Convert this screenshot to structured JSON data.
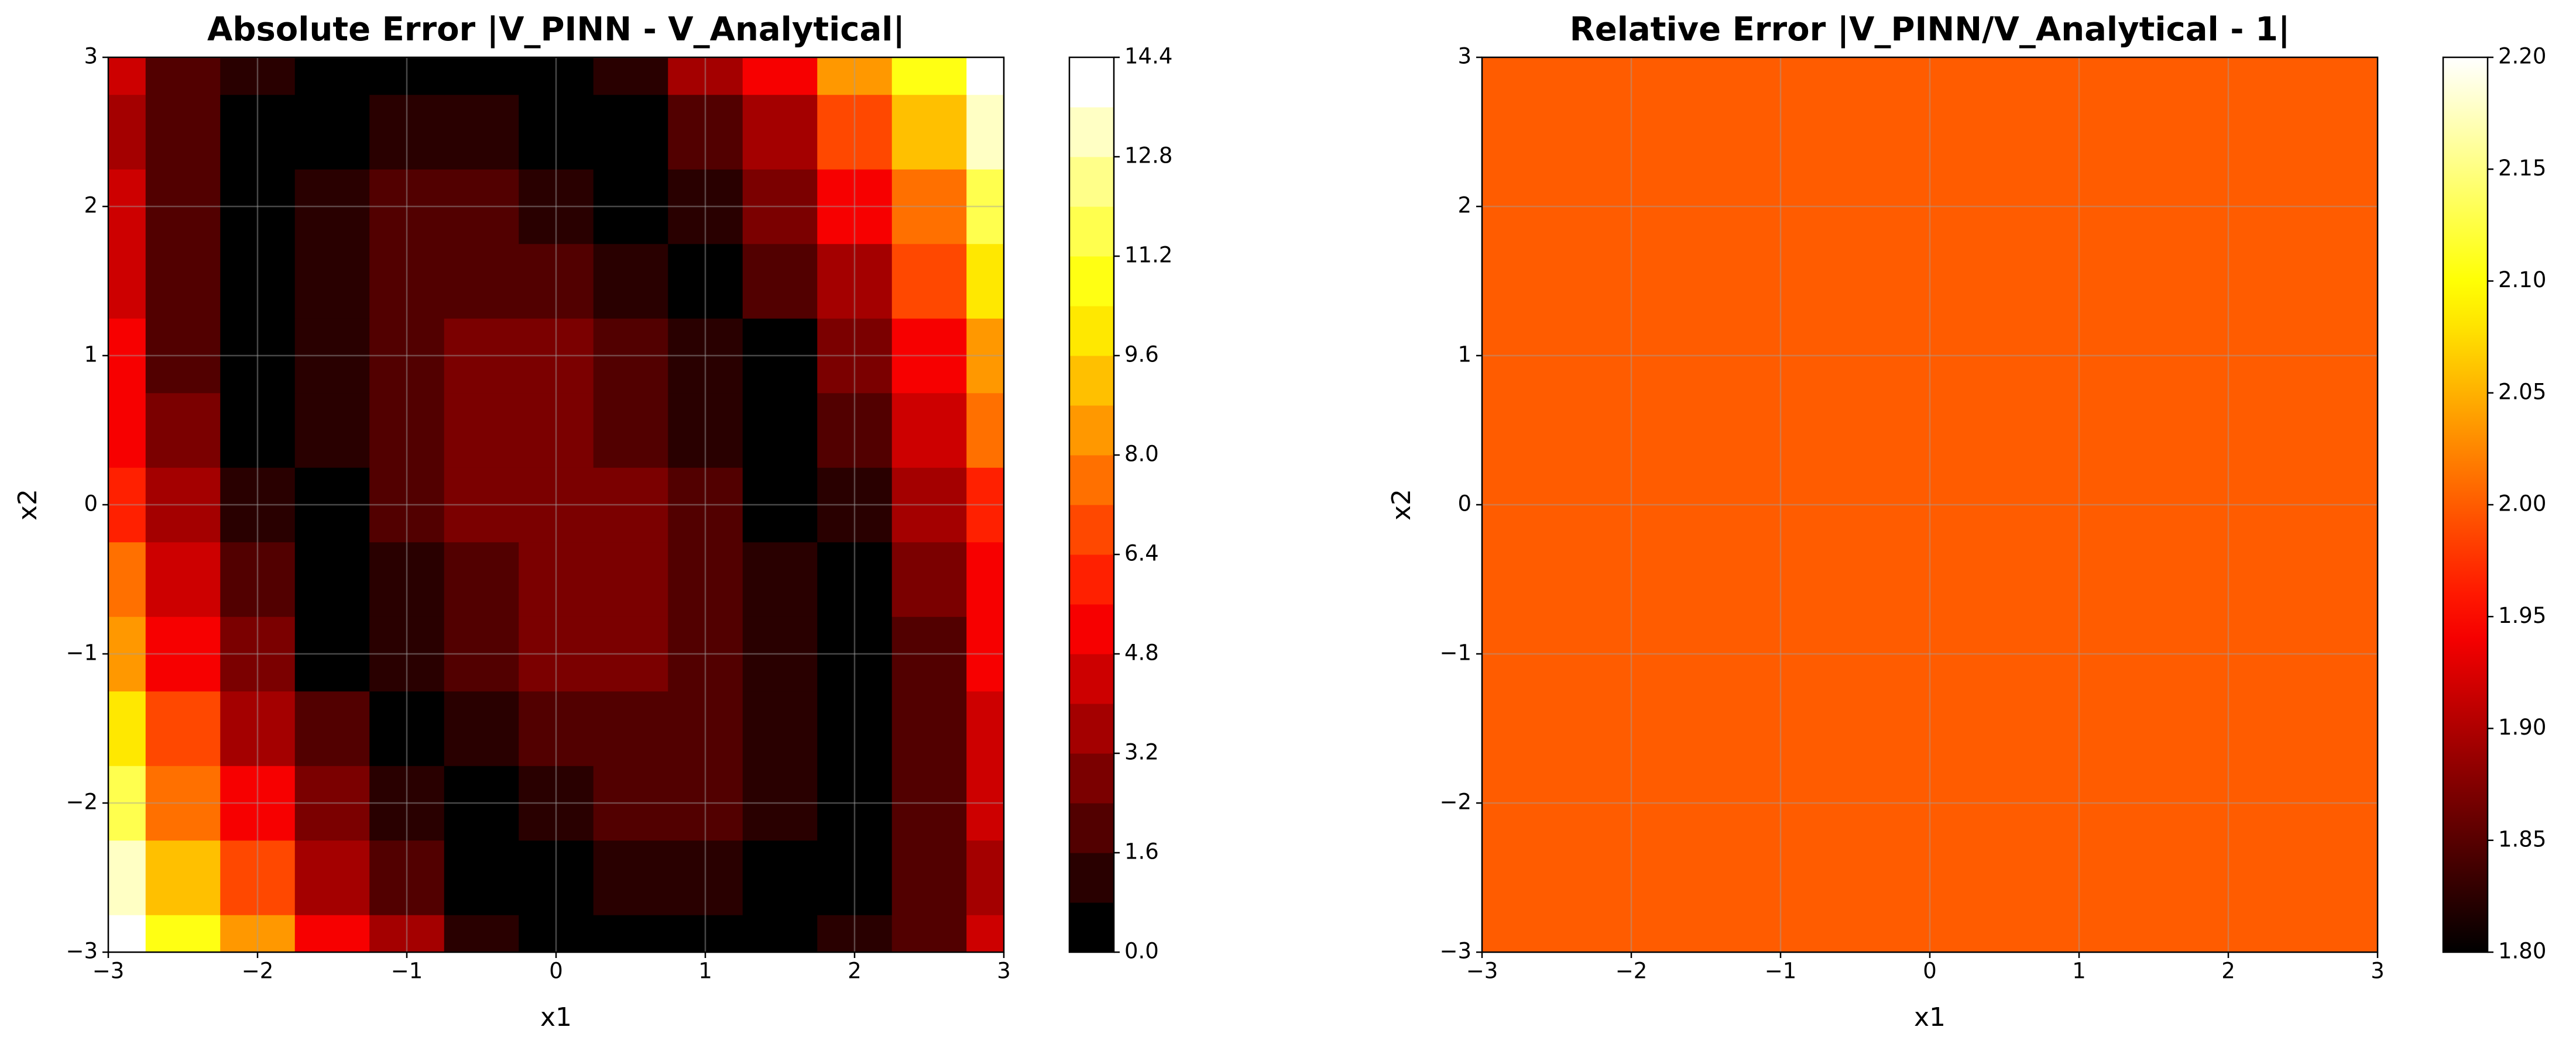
{
  "chart_data": [
    {
      "type": "contour",
      "title": "Absolute Error |V_PINN - V_Analytical|",
      "xlabel": "x1",
      "ylabel": "x2",
      "x": [
        -3,
        -2.5,
        -2,
        -1.5,
        -1,
        -0.5,
        0,
        0.5,
        1,
        1.5,
        2,
        2.5,
        3
      ],
      "y": [
        -3,
        -2.5,
        -2,
        -1.5,
        -1,
        -0.5,
        0,
        0.5,
        1,
        1.5,
        2,
        2.5,
        3
      ],
      "z": [
        [
          14.8,
          11.1,
          8.0,
          5.3,
          3.2,
          1.5,
          0.4,
          0.3,
          0.5,
          0.1,
          0.8,
          2.1,
          4.0
        ],
        [
          12.9,
          9.4,
          6.4,
          3.9,
          1.9,
          0.4,
          0.6,
          1.1,
          1.1,
          0.6,
          0.4,
          1.9,
          3.9
        ],
        [
          11.2,
          7.9,
          5.0,
          2.7,
          0.8,
          0.6,
          1.4,
          1.8,
          1.6,
          1.0,
          0.2,
          1.9,
          4.0
        ],
        [
          9.7,
          6.5,
          3.8,
          1.6,
          0.1,
          1.3,
          2.0,
          2.2,
          1.9,
          1.1,
          0.2,
          2.0,
          4.3
        ],
        [
          8.4,
          5.3,
          2.8,
          0.7,
          0.9,
          1.9,
          2.5,
          2.5,
          2.1,
          1.1,
          0.4,
          2.3,
          4.8
        ],
        [
          7.2,
          4.3,
          1.9,
          0.0,
          1.4,
          2.3,
          2.7,
          2.6,
          2.0,
          0.9,
          0.7,
          2.8,
          5.4
        ],
        [
          6.2,
          3.5,
          1.2,
          0.6,
          1.8,
          2.6,
          2.8,
          2.6,
          1.8,
          0.6,
          1.2,
          3.5,
          6.2
        ],
        [
          5.4,
          2.8,
          0.7,
          0.9,
          2.0,
          2.6,
          2.7,
          2.3,
          1.4,
          0.0,
          1.9,
          4.3,
          7.2
        ],
        [
          4.8,
          2.3,
          0.4,
          1.1,
          2.1,
          2.5,
          2.5,
          1.9,
          0.9,
          0.7,
          2.8,
          5.3,
          8.4
        ],
        [
          4.3,
          2.0,
          0.2,
          1.1,
          1.9,
          2.2,
          2.0,
          1.3,
          0.1,
          1.6,
          3.8,
          6.5,
          9.7
        ],
        [
          4.0,
          1.9,
          0.2,
          1.0,
          1.6,
          1.8,
          1.4,
          0.6,
          0.8,
          2.7,
          5.0,
          7.9,
          11.2
        ],
        [
          3.9,
          1.9,
          0.4,
          0.6,
          1.1,
          1.1,
          0.6,
          0.4,
          1.9,
          3.9,
          6.4,
          9.4,
          12.9
        ],
        [
          4.0,
          2.1,
          0.8,
          0.1,
          0.5,
          0.3,
          0.4,
          1.5,
          3.2,
          5.3,
          8.0,
          11.1,
          14.8
        ]
      ],
      "xlim": [
        -3,
        3
      ],
      "ylim": [
        -3,
        3
      ],
      "xticks": [
        {
          "value": -3,
          "label": "−3"
        },
        {
          "value": -2,
          "label": "−2"
        },
        {
          "value": -1,
          "label": "−1"
        },
        0,
        1,
        2,
        3
      ],
      "yticks": [
        {
          "value": -3,
          "label": "−3"
        },
        {
          "value": -2,
          "label": "−2"
        },
        {
          "value": -1,
          "label": "−1"
        },
        0,
        1,
        2,
        3
      ],
      "grid": true,
      "colormap": "hot",
      "levels": [
        0,
        0.8,
        1.6,
        2.4,
        3.2,
        4.0,
        4.8,
        5.6,
        6.4,
        7.2,
        8.0,
        8.8,
        9.6,
        10.4,
        11.2,
        12.0,
        12.8,
        13.6,
        14.4
      ],
      "colorbar_ticks": [
        {
          "value": 0,
          "label": "0.0"
        },
        1.6,
        3.2,
        4.8,
        6.4,
        {
          "value": 8,
          "label": "8.0"
        },
        9.6,
        11.2,
        12.8,
        14.4
      ]
    },
    {
      "type": "uniform",
      "title": "Relative Error |V_PINN/V_Analytical - 1|",
      "xlabel": "x1",
      "ylabel": "x2",
      "value": 2.0,
      "xlim": [
        -3,
        3
      ],
      "ylim": [
        -3,
        3
      ],
      "xticks": [
        {
          "value": -3,
          "label": "−3"
        },
        {
          "value": -2,
          "label": "−2"
        },
        {
          "value": -1,
          "label": "−1"
        },
        0,
        1,
        2,
        3
      ],
      "yticks": [
        {
          "value": -3,
          "label": "−3"
        },
        {
          "value": -2,
          "label": "−2"
        },
        {
          "value": -1,
          "label": "−1"
        },
        0,
        1,
        2,
        3
      ],
      "grid": true,
      "colormap": "hot",
      "colorbar_lim": [
        1.8,
        2.2
      ],
      "colorbar_ticks": [
        {
          "value": 1.8,
          "label": "1.80"
        },
        1.85,
        {
          "value": 1.9,
          "label": "1.90"
        },
        1.95,
        {
          "value": 2.0,
          "label": "2.00"
        },
        2.05,
        {
          "value": 2.1,
          "label": "2.10"
        },
        2.15,
        {
          "value": 2.2,
          "label": "2.20"
        }
      ]
    }
  ]
}
